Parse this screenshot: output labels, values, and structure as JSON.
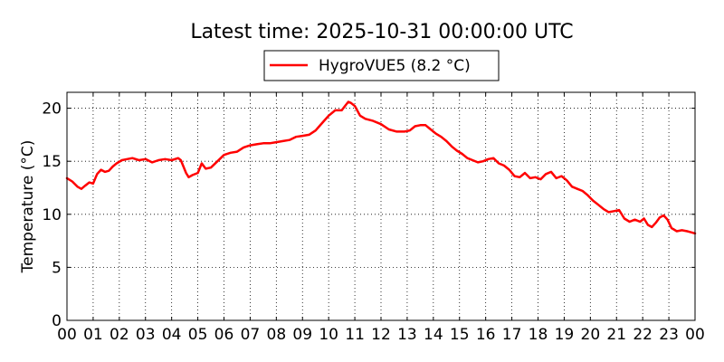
{
  "chart_data": {
    "type": "line",
    "title": "Latest time: 2025-10-31 00:00:00 UTC",
    "xlabel": "",
    "ylabel": "Temperature (°C)",
    "x_ticks": [
      "00",
      "01",
      "02",
      "03",
      "04",
      "05",
      "06",
      "07",
      "08",
      "09",
      "10",
      "11",
      "12",
      "13",
      "14",
      "15",
      "16",
      "17",
      "18",
      "19",
      "20",
      "21",
      "22",
      "23",
      "00"
    ],
    "y_ticks": [
      "0",
      "5",
      "10",
      "15",
      "20"
    ],
    "xlim": [
      0,
      24
    ],
    "ylim": [
      0,
      21.5
    ],
    "grid": true,
    "legend_position": "top-center",
    "series": [
      {
        "name": "HygroVUE5 (8.2 °C)",
        "color": "#ff0000",
        "x": [
          0.0,
          0.2,
          0.4,
          0.55,
          0.7,
          0.85,
          1.0,
          1.15,
          1.3,
          1.45,
          1.6,
          1.75,
          1.9,
          2.1,
          2.3,
          2.5,
          2.75,
          3.0,
          3.25,
          3.5,
          3.75,
          4.0,
          4.25,
          4.35,
          4.45,
          4.55,
          4.65,
          4.8,
          5.0,
          5.15,
          5.3,
          5.5,
          5.75,
          6.0,
          6.25,
          6.5,
          6.75,
          7.0,
          7.25,
          7.5,
          7.75,
          8.0,
          8.25,
          8.5,
          8.75,
          9.0,
          9.25,
          9.5,
          9.75,
          10.0,
          10.25,
          10.5,
          10.65,
          10.75,
          10.85,
          11.0,
          11.2,
          11.4,
          11.7,
          12.0,
          12.3,
          12.6,
          12.9,
          13.1,
          13.3,
          13.5,
          13.7,
          13.9,
          14.1,
          14.3,
          14.5,
          14.7,
          14.9,
          15.1,
          15.3,
          15.5,
          15.7,
          15.9,
          16.1,
          16.3,
          16.5,
          16.7,
          16.9,
          17.1,
          17.3,
          17.5,
          17.7,
          17.9,
          18.1,
          18.3,
          18.5,
          18.7,
          18.9,
          19.1,
          19.3,
          19.5,
          19.7,
          19.9,
          20.1,
          20.3,
          20.5,
          20.7,
          20.9,
          21.1,
          21.3,
          21.5,
          21.7,
          21.9,
          22.05,
          22.2,
          22.35,
          22.5,
          22.65,
          22.8,
          22.95,
          23.1,
          23.3,
          23.5,
          23.7,
          23.85,
          24.0
        ],
        "values": [
          13.4,
          13.1,
          12.6,
          12.4,
          12.7,
          13.0,
          12.9,
          13.8,
          14.2,
          14.0,
          14.1,
          14.5,
          14.8,
          15.1,
          15.2,
          15.3,
          15.1,
          15.2,
          14.9,
          15.1,
          15.2,
          15.1,
          15.3,
          15.1,
          14.5,
          13.9,
          13.5,
          13.7,
          13.9,
          14.8,
          14.3,
          14.4,
          15.0,
          15.6,
          15.8,
          15.9,
          16.3,
          16.5,
          16.6,
          16.7,
          16.7,
          16.8,
          16.9,
          17.0,
          17.3,
          17.4,
          17.5,
          17.9,
          18.6,
          19.3,
          19.8,
          19.8,
          20.3,
          20.6,
          20.5,
          20.2,
          19.3,
          19.0,
          18.8,
          18.5,
          18.0,
          17.8,
          17.8,
          17.9,
          18.3,
          18.4,
          18.4,
          18.0,
          17.6,
          17.3,
          16.9,
          16.4,
          16.0,
          15.7,
          15.3,
          15.1,
          14.9,
          15.0,
          15.2,
          15.3,
          14.8,
          14.6,
          14.2,
          13.6,
          13.5,
          13.9,
          13.4,
          13.5,
          13.3,
          13.8,
          14.0,
          13.4,
          13.6,
          13.2,
          12.6,
          12.4,
          12.2,
          11.8,
          11.3,
          10.9,
          10.5,
          10.2,
          10.3,
          10.4,
          9.6,
          9.3,
          9.5,
          9.3,
          9.6,
          9.0,
          8.8,
          9.2,
          9.7,
          9.9,
          9.5,
          8.7,
          8.4,
          8.5,
          8.4,
          8.3,
          8.2
        ]
      }
    ]
  }
}
